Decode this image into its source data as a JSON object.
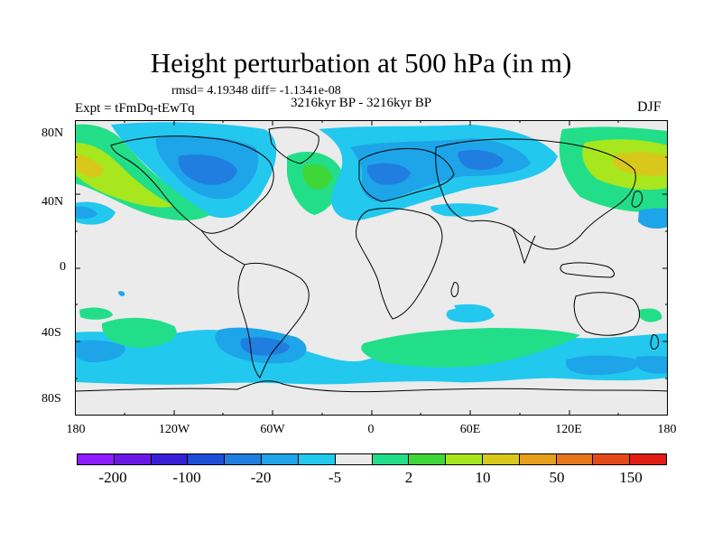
{
  "title": "Height perturbation at 500 hPa (in m)",
  "rmsd_line": "rmsd= 4.19348 diff= -1.1341e-08",
  "experiment": "Expt = tFmDq-tEwTq",
  "period": "3216kyr BP - 3216kyr BP",
  "season": "DJF",
  "lat_ticks": [
    "80N",
    "40N",
    "0",
    "40S",
    "80S"
  ],
  "lon_ticks": [
    "180",
    "120W",
    "60W",
    "0",
    "60E",
    "120E",
    "180"
  ],
  "colorbar": {
    "colors": [
      "#8c1dff",
      "#6a18e6",
      "#3a1fd8",
      "#1c4ed8",
      "#1f7ee0",
      "#1ea4e8",
      "#22c8ee",
      "#ebebeb",
      "#22de88",
      "#3fd63a",
      "#a8e61e",
      "#d8c81a",
      "#e6a01c",
      "#e8761a",
      "#e44a18",
      "#e01c14"
    ],
    "labels": [
      "-200",
      "-100",
      "-20",
      "-5",
      "2",
      "10",
      "50",
      "150"
    ]
  },
  "palette": {
    "land_outline": "#000000",
    "neutral": "#ebebeb",
    "light_blue": "#22c8ee",
    "mid_blue": "#1ea4e8",
    "dark_blue": "#1f7ee0",
    "light_green": "#22de88",
    "green": "#3fd63a",
    "yellow_green": "#a8e61e",
    "yellow": "#d8c81a"
  }
}
